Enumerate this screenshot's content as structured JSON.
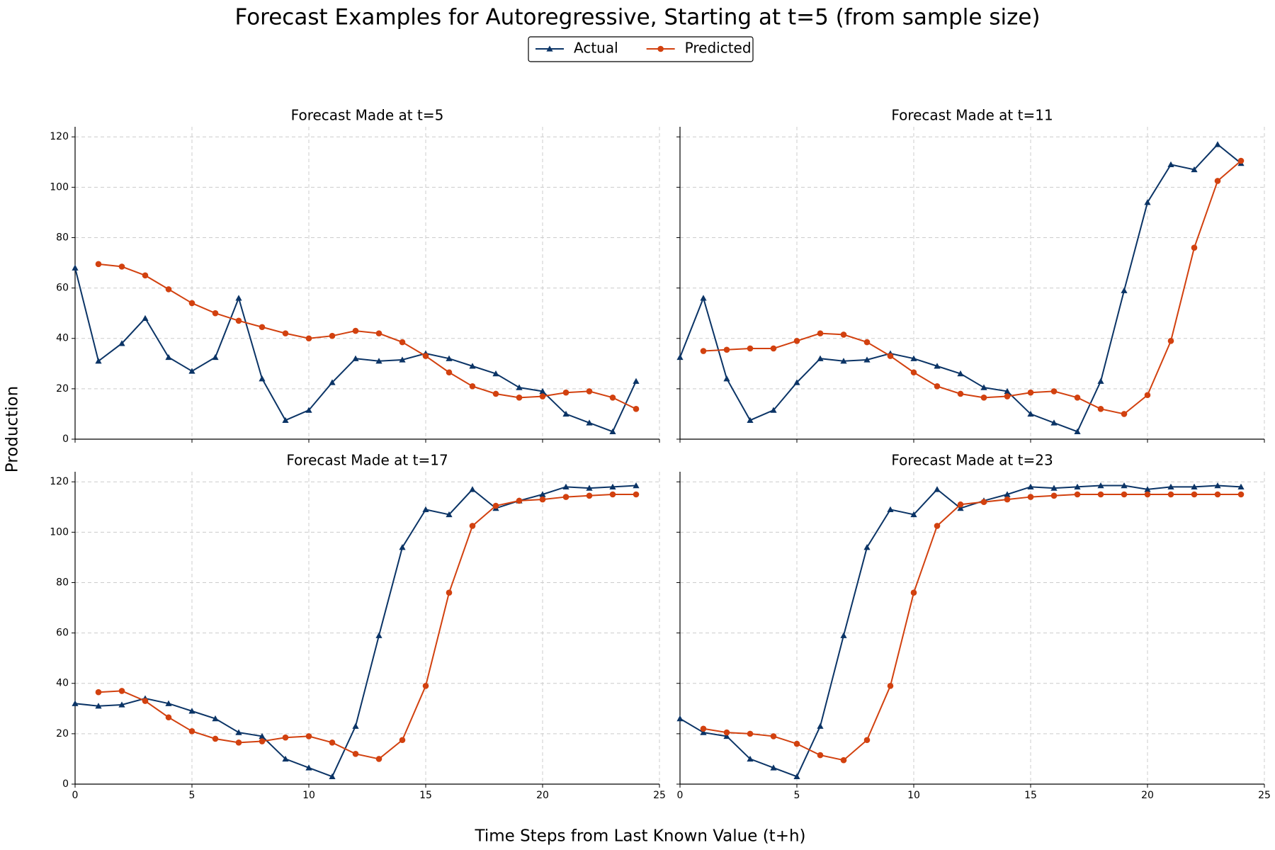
{
  "title": "Forecast Examples for Autoregressive, Starting at t=5 (from sample size)",
  "xlabel": "Time Steps from Last Known Value (t+h)",
  "ylabel": "Production",
  "chart_data": [
    {
      "type": "line",
      "title": "Forecast Made at t=5",
      "x": [
        0,
        1,
        2,
        3,
        4,
        5,
        6,
        7,
        8,
        9,
        10,
        11,
        12,
        13,
        14,
        15,
        16,
        17,
        18,
        19,
        20,
        21,
        22,
        23,
        24
      ],
      "series": [
        {
          "name": "Actual",
          "color": "#0b3466",
          "marker": "triangle",
          "values": [
            68,
            31,
            38,
            48,
            32.5,
            27,
            32.5,
            56,
            24,
            7.5,
            11.5,
            22.5,
            32,
            31,
            31.5,
            34,
            32,
            29,
            26,
            20.5,
            19,
            10,
            6.5,
            3,
            23
          ]
        },
        {
          "name": "Predicted",
          "color": "#d2410f",
          "marker": "circle",
          "values": [
            null,
            69.5,
            68.5,
            65,
            59.5,
            54,
            50,
            47,
            44.5,
            42,
            40,
            41,
            43,
            42,
            38.5,
            33,
            26.5,
            21,
            18,
            16.5,
            17,
            18.5,
            19,
            16.5,
            12
          ]
        }
      ],
      "xlim": [
        0,
        25
      ],
      "ylim": [
        0,
        124
      ],
      "xticks": [
        0,
        5,
        10,
        15,
        20,
        25
      ],
      "yticks": [
        0,
        20,
        40,
        60,
        80,
        100,
        120
      ],
      "grid": true
    },
    {
      "type": "line",
      "title": "Forecast Made at t=11",
      "x": [
        0,
        1,
        2,
        3,
        4,
        5,
        6,
        7,
        8,
        9,
        10,
        11,
        12,
        13,
        14,
        15,
        16,
        17,
        18,
        19,
        20,
        21,
        22,
        23,
        24
      ],
      "series": [
        {
          "name": "Actual",
          "color": "#0b3466",
          "marker": "triangle",
          "values": [
            32.5,
            56,
            24,
            7.5,
            11.5,
            22.5,
            32,
            31,
            31.5,
            34,
            32,
            29,
            26,
            20.5,
            19,
            10,
            6.5,
            3,
            23,
            59,
            94,
            109,
            107,
            117,
            109.5
          ]
        },
        {
          "name": "Predicted",
          "color": "#d2410f",
          "marker": "circle",
          "values": [
            null,
            35,
            35.5,
            36,
            36,
            39,
            42,
            41.5,
            38.5,
            33,
            26.5,
            21,
            18,
            16.5,
            17,
            18.5,
            19,
            16.5,
            12,
            10,
            17.5,
            39,
            76,
            102.5,
            110.5
          ]
        }
      ],
      "xlim": [
        0,
        25
      ],
      "ylim": [
        0,
        124
      ],
      "xticks": [
        0,
        5,
        10,
        15,
        20,
        25
      ],
      "yticks": [
        0,
        20,
        40,
        60,
        80,
        100,
        120
      ],
      "grid": true
    },
    {
      "type": "line",
      "title": "Forecast Made at t=17",
      "x": [
        0,
        1,
        2,
        3,
        4,
        5,
        6,
        7,
        8,
        9,
        10,
        11,
        12,
        13,
        14,
        15,
        16,
        17,
        18,
        19,
        20,
        21,
        22,
        23,
        24
      ],
      "series": [
        {
          "name": "Actual",
          "color": "#0b3466",
          "marker": "triangle",
          "values": [
            32,
            31,
            31.5,
            34,
            32,
            29,
            26,
            20.5,
            19,
            10,
            6.5,
            3,
            23,
            59,
            94,
            109,
            107,
            117,
            109.5,
            112.5,
            115,
            118,
            117.5,
            118,
            118.5
          ]
        },
        {
          "name": "Predicted",
          "color": "#d2410f",
          "marker": "circle",
          "values": [
            null,
            36.5,
            37,
            33,
            26.5,
            21,
            18,
            16.5,
            17,
            18.5,
            19,
            16.5,
            12,
            10,
            17.5,
            39,
            76,
            102.5,
            110.5,
            112.5,
            113,
            114,
            114.5,
            115,
            115
          ]
        }
      ],
      "xlim": [
        0,
        25
      ],
      "ylim": [
        0,
        124
      ],
      "xticks": [
        0,
        5,
        10,
        15,
        20,
        25
      ],
      "yticks": [
        0,
        20,
        40,
        60,
        80,
        100,
        120
      ],
      "grid": true
    },
    {
      "type": "line",
      "title": "Forecast Made at t=23",
      "x": [
        0,
        1,
        2,
        3,
        4,
        5,
        6,
        7,
        8,
        9,
        10,
        11,
        12,
        13,
        14,
        15,
        16,
        17,
        18,
        19,
        20,
        21,
        22,
        23,
        24
      ],
      "series": [
        {
          "name": "Actual",
          "color": "#0b3466",
          "marker": "triangle",
          "values": [
            26,
            20.5,
            19,
            10,
            6.5,
            3,
            23,
            59,
            94,
            109,
            107,
            117,
            109.5,
            112.5,
            115,
            118,
            117.5,
            118,
            118.5,
            118.5,
            117,
            118,
            118,
            118.5,
            118
          ]
        },
        {
          "name": "Predicted",
          "color": "#d2410f",
          "marker": "circle",
          "values": [
            null,
            22,
            20.5,
            20,
            19,
            16,
            11.5,
            9.5,
            17.5,
            39,
            76,
            102.5,
            111,
            112,
            113,
            114,
            114.5,
            115,
            115,
            115,
            115,
            115,
            115,
            115,
            115
          ]
        }
      ],
      "xlim": [
        0,
        25
      ],
      "ylim": [
        0,
        124
      ],
      "xticks": [
        0,
        5,
        10,
        15,
        20,
        25
      ],
      "yticks": [
        0,
        20,
        40,
        60,
        80,
        100,
        120
      ],
      "grid": true
    }
  ]
}
